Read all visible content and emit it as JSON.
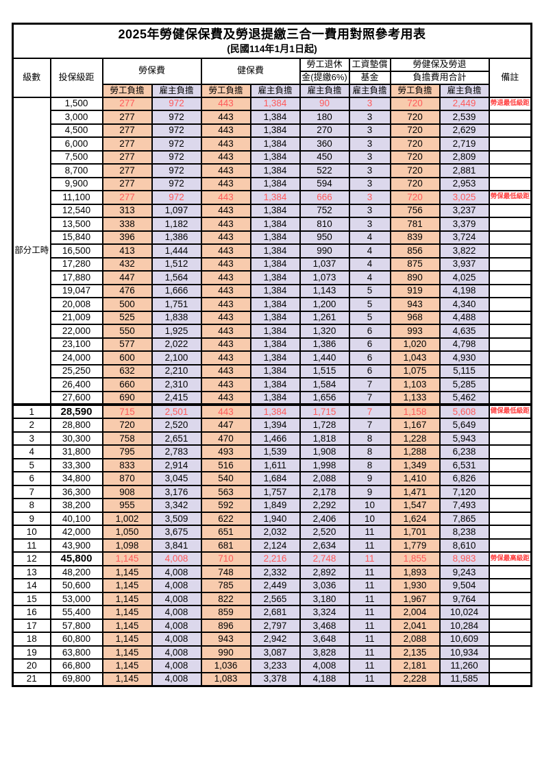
{
  "title": "2025年勞健保保費及勞退提繳三合一費用對照參考用表",
  "subtitle": "(民國114年1月1日起)",
  "columns": {
    "level": "級數",
    "bracket": "投保級距",
    "labor": "勞保費",
    "health": "健保費",
    "pension": [
      "勞工退休",
      "金(提繳6%)"
    ],
    "wage_fund": [
      "工資墊償",
      "基金"
    ],
    "total": [
      "勞健保及勞退",
      "負擔費用合計"
    ],
    "remark": "備註",
    "employee": "勞工負擔",
    "employer": "雇主負擔"
  },
  "colors": {
    "employee_bg": "#F8CBAD",
    "employer_bg": "#DCD8EC",
    "highlight_text": "#FF5A5A",
    "remark_text": "#FF4040",
    "grid": "#000000"
  },
  "rows": [
    {
      "level": "部分工時",
      "level_rowspan": 23,
      "bracket": "1,500",
      "v": [
        "277",
        "972",
        "443",
        "1,384",
        "90",
        "3",
        "720",
        "2,449"
      ],
      "remark": "勞退最低級距",
      "red": true
    },
    {
      "bracket": "3,000",
      "v": [
        "277",
        "972",
        "443",
        "1,384",
        "180",
        "3",
        "720",
        "2,539"
      ],
      "remark": ""
    },
    {
      "bracket": "4,500",
      "v": [
        "277",
        "972",
        "443",
        "1,384",
        "270",
        "3",
        "720",
        "2,629"
      ],
      "remark": ""
    },
    {
      "bracket": "6,000",
      "v": [
        "277",
        "972",
        "443",
        "1,384",
        "360",
        "3",
        "720",
        "2,719"
      ],
      "remark": ""
    },
    {
      "bracket": "7,500",
      "v": [
        "277",
        "972",
        "443",
        "1,384",
        "450",
        "3",
        "720",
        "2,809"
      ],
      "remark": ""
    },
    {
      "bracket": "8,700",
      "v": [
        "277",
        "972",
        "443",
        "1,384",
        "522",
        "3",
        "720",
        "2,881"
      ],
      "remark": ""
    },
    {
      "bracket": "9,900",
      "v": [
        "277",
        "972",
        "443",
        "1,384",
        "594",
        "3",
        "720",
        "2,953"
      ],
      "remark": ""
    },
    {
      "bracket": "11,100",
      "v": [
        "277",
        "972",
        "443",
        "1,384",
        "666",
        "3",
        "720",
        "3,025"
      ],
      "remark": "勞保最低級距",
      "red": true
    },
    {
      "bracket": "12,540",
      "v": [
        "313",
        "1,097",
        "443",
        "1,384",
        "752",
        "3",
        "756",
        "3,237"
      ],
      "remark": ""
    },
    {
      "bracket": "13,500",
      "v": [
        "338",
        "1,182",
        "443",
        "1,384",
        "810",
        "3",
        "781",
        "3,379"
      ],
      "remark": ""
    },
    {
      "bracket": "15,840",
      "v": [
        "396",
        "1,386",
        "443",
        "1,384",
        "950",
        "4",
        "839",
        "3,724"
      ],
      "remark": ""
    },
    {
      "bracket": "16,500",
      "v": [
        "413",
        "1,444",
        "443",
        "1,384",
        "990",
        "4",
        "856",
        "3,822"
      ],
      "remark": ""
    },
    {
      "bracket": "17,280",
      "v": [
        "432",
        "1,512",
        "443",
        "1,384",
        "1,037",
        "4",
        "875",
        "3,937"
      ],
      "remark": ""
    },
    {
      "bracket": "17,880",
      "v": [
        "447",
        "1,564",
        "443",
        "1,384",
        "1,073",
        "4",
        "890",
        "4,025"
      ],
      "remark": ""
    },
    {
      "bracket": "19,047",
      "v": [
        "476",
        "1,666",
        "443",
        "1,384",
        "1,143",
        "5",
        "919",
        "4,198"
      ],
      "remark": ""
    },
    {
      "bracket": "20,008",
      "v": [
        "500",
        "1,751",
        "443",
        "1,384",
        "1,200",
        "5",
        "943",
        "4,340"
      ],
      "remark": ""
    },
    {
      "bracket": "21,009",
      "v": [
        "525",
        "1,838",
        "443",
        "1,384",
        "1,261",
        "5",
        "968",
        "4,488"
      ],
      "remark": ""
    },
    {
      "bracket": "22,000",
      "v": [
        "550",
        "1,925",
        "443",
        "1,384",
        "1,320",
        "6",
        "993",
        "4,635"
      ],
      "remark": ""
    },
    {
      "bracket": "23,100",
      "v": [
        "577",
        "2,022",
        "443",
        "1,384",
        "1,386",
        "6",
        "1,020",
        "4,798"
      ],
      "remark": ""
    },
    {
      "bracket": "24,000",
      "v": [
        "600",
        "2,100",
        "443",
        "1,384",
        "1,440",
        "6",
        "1,043",
        "4,930"
      ],
      "remark": ""
    },
    {
      "bracket": "25,250",
      "v": [
        "632",
        "2,210",
        "443",
        "1,384",
        "1,515",
        "6",
        "1,075",
        "5,115"
      ],
      "remark": ""
    },
    {
      "bracket": "26,400",
      "v": [
        "660",
        "2,310",
        "443",
        "1,384",
        "1,584",
        "7",
        "1,103",
        "5,285"
      ],
      "remark": ""
    },
    {
      "bracket": "27,600",
      "v": [
        "690",
        "2,415",
        "443",
        "1,384",
        "1,656",
        "7",
        "1,133",
        "5,462"
      ],
      "remark": ""
    },
    {
      "level": "1",
      "bracket": "28,590",
      "v": [
        "715",
        "2,501",
        "443",
        "1,384",
        "1,715",
        "7",
        "1,158",
        "5,608"
      ],
      "remark": "健保最低級距",
      "red": true,
      "big": true,
      "sep": true
    },
    {
      "level": "2",
      "bracket": "28,800",
      "v": [
        "720",
        "2,520",
        "447",
        "1,394",
        "1,728",
        "7",
        "1,167",
        "5,649"
      ],
      "remark": ""
    },
    {
      "level": "3",
      "bracket": "30,300",
      "v": [
        "758",
        "2,651",
        "470",
        "1,466",
        "1,818",
        "8",
        "1,228",
        "5,943"
      ],
      "remark": ""
    },
    {
      "level": "4",
      "bracket": "31,800",
      "v": [
        "795",
        "2,783",
        "493",
        "1,539",
        "1,908",
        "8",
        "1,288",
        "6,238"
      ],
      "remark": ""
    },
    {
      "level": "5",
      "bracket": "33,300",
      "v": [
        "833",
        "2,914",
        "516",
        "1,611",
        "1,998",
        "8",
        "1,349",
        "6,531"
      ],
      "remark": ""
    },
    {
      "level": "6",
      "bracket": "34,800",
      "v": [
        "870",
        "3,045",
        "540",
        "1,684",
        "2,088",
        "9",
        "1,410",
        "6,826"
      ],
      "remark": ""
    },
    {
      "level": "7",
      "bracket": "36,300",
      "v": [
        "908",
        "3,176",
        "563",
        "1,757",
        "2,178",
        "9",
        "1,471",
        "7,120"
      ],
      "remark": ""
    },
    {
      "level": "8",
      "bracket": "38,200",
      "v": [
        "955",
        "3,342",
        "592",
        "1,849",
        "2,292",
        "10",
        "1,547",
        "7,493"
      ],
      "remark": ""
    },
    {
      "level": "9",
      "bracket": "40,100",
      "v": [
        "1,002",
        "3,509",
        "622",
        "1,940",
        "2,406",
        "10",
        "1,624",
        "7,865"
      ],
      "remark": ""
    },
    {
      "level": "10",
      "bracket": "42,000",
      "v": [
        "1,050",
        "3,675",
        "651",
        "2,032",
        "2,520",
        "11",
        "1,701",
        "8,238"
      ],
      "remark": ""
    },
    {
      "level": "11",
      "bracket": "43,900",
      "v": [
        "1,098",
        "3,841",
        "681",
        "2,124",
        "2,634",
        "11",
        "1,779",
        "8,610"
      ],
      "remark": ""
    },
    {
      "level": "12",
      "bracket": "45,800",
      "v": [
        "1,145",
        "4,008",
        "710",
        "2,216",
        "2,748",
        "11",
        "1,855",
        "8,983"
      ],
      "remark": "勞保最高級距",
      "red": true,
      "big": true
    },
    {
      "level": "13",
      "bracket": "48,200",
      "v": [
        "1,145",
        "4,008",
        "748",
        "2,332",
        "2,892",
        "11",
        "1,893",
        "9,243"
      ],
      "remark": ""
    },
    {
      "level": "14",
      "bracket": "50,600",
      "v": [
        "1,145",
        "4,008",
        "785",
        "2,449",
        "3,036",
        "11",
        "1,930",
        "9,504"
      ],
      "remark": ""
    },
    {
      "level": "15",
      "bracket": "53,000",
      "v": [
        "1,145",
        "4,008",
        "822",
        "2,565",
        "3,180",
        "11",
        "1,967",
        "9,764"
      ],
      "remark": ""
    },
    {
      "level": "16",
      "bracket": "55,400",
      "v": [
        "1,145",
        "4,008",
        "859",
        "2,681",
        "3,324",
        "11",
        "2,004",
        "10,024"
      ],
      "remark": ""
    },
    {
      "level": "17",
      "bracket": "57,800",
      "v": [
        "1,145",
        "4,008",
        "896",
        "2,797",
        "3,468",
        "11",
        "2,041",
        "10,284"
      ],
      "remark": ""
    },
    {
      "level": "18",
      "bracket": "60,800",
      "v": [
        "1,145",
        "4,008",
        "943",
        "2,942",
        "3,648",
        "11",
        "2,088",
        "10,609"
      ],
      "remark": ""
    },
    {
      "level": "19",
      "bracket": "63,800",
      "v": [
        "1,145",
        "4,008",
        "990",
        "3,087",
        "3,828",
        "11",
        "2,135",
        "10,934"
      ],
      "remark": ""
    },
    {
      "level": "20",
      "bracket": "66,800",
      "v": [
        "1,145",
        "4,008",
        "1,036",
        "3,233",
        "4,008",
        "11",
        "2,181",
        "11,260"
      ],
      "remark": ""
    },
    {
      "level": "21",
      "bracket": "69,800",
      "v": [
        "1,145",
        "4,008",
        "1,083",
        "3,378",
        "4,188",
        "11",
        "2,228",
        "11,585"
      ],
      "remark": ""
    }
  ]
}
